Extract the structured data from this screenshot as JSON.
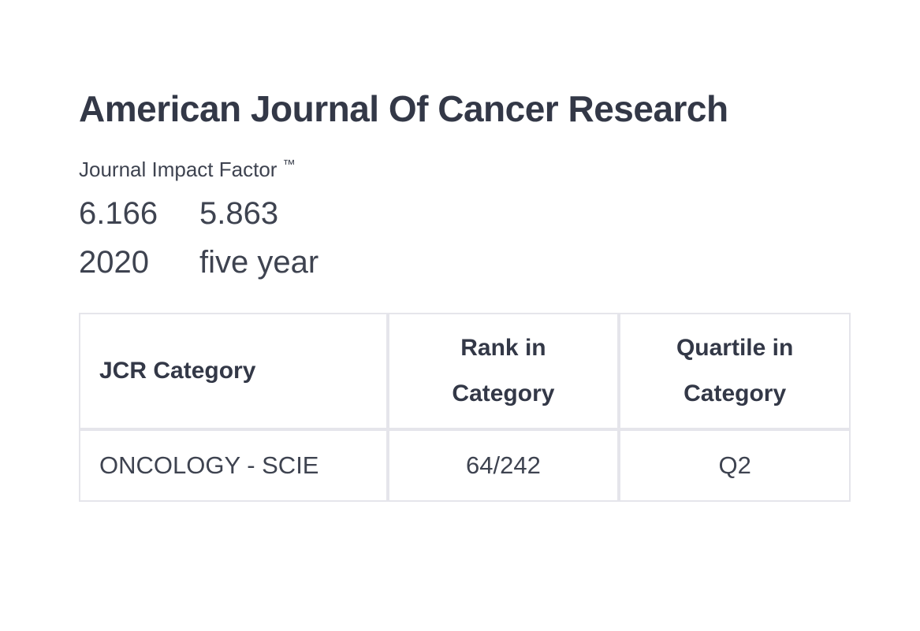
{
  "journal": {
    "title": "American Journal Of Cancer Research",
    "impact_factor": {
      "label": "Journal Impact Factor",
      "trademark": "™",
      "metrics": [
        {
          "value": "6.166",
          "period": "2020"
        },
        {
          "value": "5.863",
          "period": "five year"
        }
      ]
    },
    "rank_table": {
      "columns": [
        "JCR Category",
        "Rank in Category",
        "Quartile in Category"
      ],
      "rows": [
        [
          "ONCOLOGY - SCIE",
          "64/242",
          "Q2"
        ]
      ]
    }
  },
  "colors": {
    "title_text": "#333847",
    "body_text": "#3e4350",
    "table_border": "#e5e5eb",
    "background": "#ffffff"
  }
}
